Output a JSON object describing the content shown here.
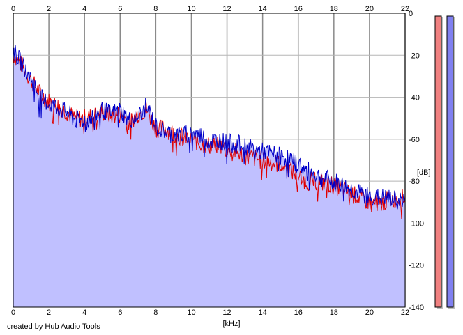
{
  "footer": {
    "credit": "created by Hub Audio Tools"
  },
  "chart_data": {
    "type": "line",
    "xlabel": "[kHz]",
    "ylabel": "[dB]",
    "xlim": [
      0,
      22
    ],
    "ylim": [
      -140,
      0
    ],
    "x_ticks": [
      0,
      2,
      4,
      6,
      8,
      10,
      12,
      14,
      16,
      18,
      20,
      22
    ],
    "y_ticks": [
      0,
      -20,
      -40,
      -60,
      -80,
      -100,
      -120,
      -140
    ],
    "grid": true,
    "series": [
      {
        "color": "#e00000",
        "x": [
          0,
          0.5,
          1,
          1.5,
          2,
          2.5,
          3,
          3.5,
          4,
          4.5,
          5,
          5.5,
          6,
          6.5,
          7,
          7.5,
          8,
          8.5,
          9,
          9.5,
          10,
          10.5,
          11,
          11.5,
          12,
          12.5,
          13,
          13.5,
          14,
          14.5,
          15,
          15.5,
          16,
          16.5,
          17,
          17.5,
          18,
          18.5,
          19,
          19.5,
          20,
          20.5,
          21,
          21.5,
          22
        ],
        "values": [
          -20,
          -25,
          -32,
          -38,
          -42,
          -44,
          -47,
          -50,
          -50,
          -49,
          -47,
          -49,
          -48,
          -52,
          -48,
          -46,
          -55,
          -55,
          -57,
          -59,
          -60,
          -62,
          -63,
          -63,
          -64,
          -66,
          -68,
          -69,
          -70,
          -71,
          -72,
          -74,
          -78,
          -80,
          -80,
          -81,
          -82,
          -84,
          -86,
          -88,
          -90,
          -91,
          -89,
          -88,
          -88
        ]
      },
      {
        "color": "#0000c8",
        "x": [
          0,
          0.5,
          1,
          1.5,
          2,
          2.5,
          3,
          3.5,
          4,
          4.5,
          5,
          5.5,
          6,
          6.5,
          7,
          7.5,
          8,
          8.5,
          9,
          9.5,
          10,
          10.5,
          11,
          11.5,
          12,
          12.5,
          13,
          13.5,
          14,
          14.5,
          15,
          15.5,
          16,
          16.5,
          17,
          17.5,
          18,
          18.5,
          19,
          19.5,
          20,
          20.5,
          21,
          21.5,
          22
        ],
        "values": [
          -18,
          -24,
          -31,
          -40,
          -43,
          -45,
          -47,
          -51,
          -51,
          -49,
          -46,
          -48,
          -46,
          -51,
          -49,
          -44,
          -54,
          -56,
          -58,
          -58,
          -57,
          -58,
          -61,
          -60,
          -62,
          -62,
          -63,
          -65,
          -66,
          -67,
          -68,
          -69,
          -72,
          -75,
          -77,
          -79,
          -80,
          -82,
          -84,
          -86,
          -87,
          -88,
          -88,
          -89,
          -89
        ]
      }
    ],
    "meters": [
      {
        "color": "#f08080",
        "level": 1.0
      },
      {
        "color": "#8080f0",
        "level": 1.0
      }
    ],
    "fill_color": "#c0c0ff",
    "plot_background": "#ffffff"
  }
}
